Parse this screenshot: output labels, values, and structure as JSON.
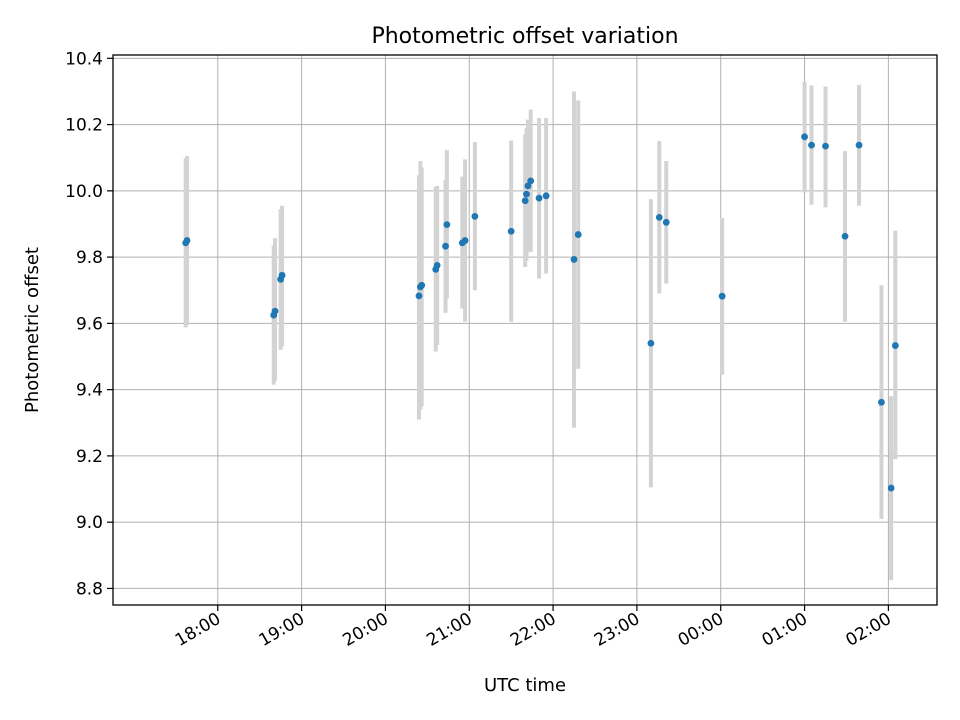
{
  "chart_data": {
    "type": "scatter",
    "title": "Photometric offset variation",
    "xlabel": "UTC time",
    "ylabel": "Photometric offset",
    "x_unit": "hours (UTC, continuing past midnight)",
    "xlim": [
      16.75,
      26.58
    ],
    "ylim": [
      8.75,
      10.41
    ],
    "x_ticks": [
      {
        "value": 18,
        "label": "18:00"
      },
      {
        "value": 19,
        "label": "19:00"
      },
      {
        "value": 20,
        "label": "20:00"
      },
      {
        "value": 21,
        "label": "21:00"
      },
      {
        "value": 22,
        "label": "22:00"
      },
      {
        "value": 23,
        "label": "23:00"
      },
      {
        "value": 24,
        "label": "00:00"
      },
      {
        "value": 25,
        "label": "01:00"
      },
      {
        "value": 26,
        "label": "02:00"
      }
    ],
    "y_ticks": [
      {
        "value": 8.8,
        "label": "8.8"
      },
      {
        "value": 9.0,
        "label": "9.0"
      },
      {
        "value": 9.2,
        "label": "9.2"
      },
      {
        "value": 9.4,
        "label": "9.4"
      },
      {
        "value": 9.6,
        "label": "9.6"
      },
      {
        "value": 9.8,
        "label": "9.8"
      },
      {
        "value": 10.0,
        "label": "10.0"
      },
      {
        "value": 10.2,
        "label": "10.2"
      },
      {
        "value": 10.4,
        "label": "10.4"
      }
    ],
    "grid": true,
    "colors": {
      "point": "#1f77b4",
      "errorbar": "#d3d3d3",
      "grid": "#b0b0b0",
      "axes": "#000000"
    },
    "points": [
      {
        "x": 17.617,
        "y": 9.843,
        "ylow": 9.588,
        "yhigh": 10.098
      },
      {
        "x": 17.633,
        "y": 9.85,
        "ylow": 9.595,
        "yhigh": 10.105
      },
      {
        "x": 18.667,
        "y": 9.625,
        "ylow": 9.415,
        "yhigh": 9.835
      },
      {
        "x": 18.683,
        "y": 9.637,
        "ylow": 9.427,
        "yhigh": 9.857
      },
      {
        "x": 18.75,
        "y": 9.733,
        "ylow": 9.52,
        "yhigh": 9.945
      },
      {
        "x": 18.767,
        "y": 9.745,
        "ylow": 9.53,
        "yhigh": 9.955
      },
      {
        "x": 20.4,
        "y": 9.683,
        "ylow": 9.31,
        "yhigh": 10.047
      },
      {
        "x": 20.417,
        "y": 9.71,
        "ylow": 9.34,
        "yhigh": 10.09
      },
      {
        "x": 20.433,
        "y": 9.715,
        "ylow": 9.35,
        "yhigh": 10.07
      },
      {
        "x": 20.6,
        "y": 9.763,
        "ylow": 9.515,
        "yhigh": 10.012
      },
      {
        "x": 20.617,
        "y": 9.775,
        "ylow": 9.535,
        "yhigh": 10.015
      },
      {
        "x": 20.717,
        "y": 9.833,
        "ylow": 9.632,
        "yhigh": 10.033
      },
      {
        "x": 20.733,
        "y": 9.898,
        "ylow": 9.675,
        "yhigh": 10.123
      },
      {
        "x": 20.917,
        "y": 9.843,
        "ylow": 9.645,
        "yhigh": 10.043
      },
      {
        "x": 20.95,
        "y": 9.85,
        "ylow": 9.605,
        "yhigh": 10.095
      },
      {
        "x": 21.067,
        "y": 9.923,
        "ylow": 9.7,
        "yhigh": 10.147
      },
      {
        "x": 21.5,
        "y": 9.878,
        "ylow": 9.605,
        "yhigh": 10.152
      },
      {
        "x": 21.667,
        "y": 9.97,
        "ylow": 9.77,
        "yhigh": 10.17
      },
      {
        "x": 21.683,
        "y": 9.99,
        "ylow": 9.79,
        "yhigh": 10.19
      },
      {
        "x": 21.7,
        "y": 10.015,
        "ylow": 9.815,
        "yhigh": 10.215
      },
      {
        "x": 21.733,
        "y": 10.03,
        "ylow": 9.815,
        "yhigh": 10.245
      },
      {
        "x": 21.833,
        "y": 9.978,
        "ylow": 9.735,
        "yhigh": 10.22
      },
      {
        "x": 21.917,
        "y": 9.985,
        "ylow": 9.75,
        "yhigh": 10.22
      },
      {
        "x": 22.25,
        "y": 9.793,
        "ylow": 9.285,
        "yhigh": 10.3
      },
      {
        "x": 22.3,
        "y": 9.868,
        "ylow": 9.463,
        "yhigh": 10.273
      },
      {
        "x": 23.167,
        "y": 9.54,
        "ylow": 9.105,
        "yhigh": 9.975
      },
      {
        "x": 23.267,
        "y": 9.92,
        "ylow": 9.69,
        "yhigh": 10.15
      },
      {
        "x": 23.35,
        "y": 9.905,
        "ylow": 9.72,
        "yhigh": 10.09
      },
      {
        "x": 24.017,
        "y": 9.682,
        "ylow": 9.445,
        "yhigh": 9.918
      },
      {
        "x": 25.0,
        "y": 10.163,
        "ylow": 9.995,
        "yhigh": 10.33
      },
      {
        "x": 25.083,
        "y": 10.138,
        "ylow": 9.958,
        "yhigh": 10.318
      },
      {
        "x": 25.25,
        "y": 10.135,
        "ylow": 9.95,
        "yhigh": 10.315
      },
      {
        "x": 25.483,
        "y": 9.863,
        "ylow": 9.605,
        "yhigh": 10.12
      },
      {
        "x": 25.65,
        "y": 10.138,
        "ylow": 9.955,
        "yhigh": 10.32
      },
      {
        "x": 25.917,
        "y": 9.362,
        "ylow": 9.01,
        "yhigh": 9.715
      },
      {
        "x": 26.033,
        "y": 9.103,
        "ylow": 8.825,
        "yhigh": 9.38
      },
      {
        "x": 26.083,
        "y": 9.533,
        "ylow": 9.19,
        "yhigh": 9.88
      }
    ]
  }
}
